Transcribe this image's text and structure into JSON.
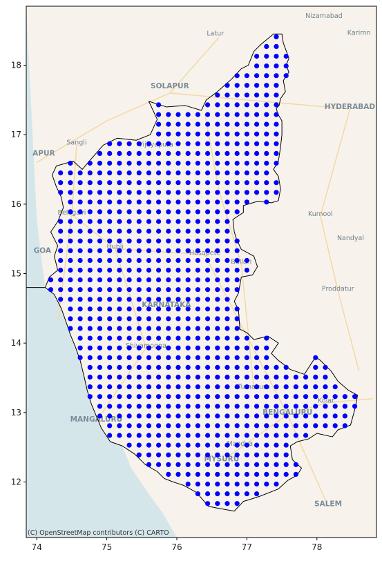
{
  "chart_data": {
    "type": "scatter",
    "title": "",
    "xlabel": "",
    "ylabel": "",
    "xlim": [
      73.85,
      78.85
    ],
    "ylim": [
      11.2,
      18.85
    ],
    "x_ticks": [
      74,
      75,
      76,
      77,
      78
    ],
    "y_ticks": [
      12,
      13,
      14,
      15,
      16,
      17,
      18
    ],
    "x_tick_labels": [
      "74",
      "75",
      "76",
      "77",
      "78"
    ],
    "y_tick_labels": [
      "12",
      "13",
      "14",
      "15",
      "16",
      "17",
      "18"
    ],
    "grid_spacing_deg": 0.14,
    "point_color": "#0000ff",
    "boundary_color": "#000000",
    "basemap": {
      "land_color": "#f7f3ec",
      "sea_color": "#d5e6ea",
      "attribution": "(C) OpenStreetMap contributors (C) CARTO",
      "place_labels": [
        {
          "name": "Nizamabad",
          "lon": 78.1,
          "lat": 18.68
        },
        {
          "name": "Karimn",
          "lon": 78.6,
          "lat": 18.44
        },
        {
          "name": "Latur",
          "lon": 76.55,
          "lat": 18.43
        },
        {
          "name": "SOLAPUR",
          "lon": 75.9,
          "lat": 17.67
        },
        {
          "name": "HYDERABAD",
          "lon": 78.47,
          "lat": 17.37
        },
        {
          "name": "Sangli",
          "lon": 74.57,
          "lat": 16.86
        },
        {
          "name": "Vijayapura",
          "lon": 75.7,
          "lat": 16.83
        },
        {
          "name": "APUR",
          "lon": 74.1,
          "lat": 16.7
        },
        {
          "name": "Kurnool",
          "lon": 78.05,
          "lat": 15.83
        },
        {
          "name": "Belagavi",
          "lon": 74.5,
          "lat": 15.85
        },
        {
          "name": "Nandyal",
          "lon": 78.48,
          "lat": 15.48
        },
        {
          "name": "GOA",
          "lon": 74.08,
          "lat": 15.3
        },
        {
          "name": "Hubli",
          "lon": 75.12,
          "lat": 15.36
        },
        {
          "name": "Hosapete",
          "lon": 76.4,
          "lat": 15.27
        },
        {
          "name": "Ballari",
          "lon": 76.92,
          "lat": 15.14
        },
        {
          "name": "Proddatur",
          "lon": 78.3,
          "lat": 14.75
        },
        {
          "name": "KARNATAKA",
          "lon": 75.85,
          "lat": 14.52
        },
        {
          "name": "Shivamogga",
          "lon": 75.56,
          "lat": 13.93
        },
        {
          "name": "Tumakuru",
          "lon": 77.1,
          "lat": 13.34
        },
        {
          "name": "Kolar",
          "lon": 78.13,
          "lat": 13.14
        },
        {
          "name": "MANGALURU",
          "lon": 74.85,
          "lat": 12.87
        },
        {
          "name": "BENGALURU",
          "lon": 77.58,
          "lat": 12.97
        },
        {
          "name": "Mandya",
          "lon": 76.9,
          "lat": 12.52
        },
        {
          "name": "MYSURU",
          "lon": 76.64,
          "lat": 12.3
        },
        {
          "name": "SALEM",
          "lon": 78.16,
          "lat": 11.65
        }
      ]
    },
    "boundary": [
      [
        77.38,
        18.45
      ],
      [
        77.5,
        18.45
      ],
      [
        77.52,
        18.32
      ],
      [
        77.55,
        18.24
      ],
      [
        77.6,
        18.1
      ],
      [
        77.56,
        18.0
      ],
      [
        77.6,
        17.9
      ],
      [
        77.52,
        17.78
      ],
      [
        77.55,
        17.62
      ],
      [
        77.48,
        17.52
      ],
      [
        77.46,
        17.42
      ],
      [
        77.42,
        17.38
      ],
      [
        77.44,
        17.3
      ],
      [
        77.5,
        17.2
      ],
      [
        77.5,
        17.0
      ],
      [
        77.48,
        16.82
      ],
      [
        77.45,
        16.62
      ],
      [
        77.38,
        16.5
      ],
      [
        77.45,
        16.4
      ],
      [
        77.48,
        16.22
      ],
      [
        77.45,
        16.05
      ],
      [
        77.35,
        16.02
      ],
      [
        77.15,
        16.04
      ],
      [
        76.95,
        15.98
      ],
      [
        76.95,
        15.88
      ],
      [
        76.8,
        15.78
      ],
      [
        76.82,
        15.6
      ],
      [
        76.85,
        15.5
      ],
      [
        76.92,
        15.35
      ],
      [
        77.1,
        15.25
      ],
      [
        77.15,
        15.1
      ],
      [
        77.08,
        14.98
      ],
      [
        76.92,
        14.95
      ],
      [
        76.88,
        14.72
      ],
      [
        76.82,
        14.6
      ],
      [
        76.88,
        14.48
      ],
      [
        76.9,
        14.2
      ],
      [
        77.0,
        14.15
      ],
      [
        77.1,
        14.05
      ],
      [
        77.3,
        14.1
      ],
      [
        77.45,
        14.0
      ],
      [
        77.35,
        13.85
      ],
      [
        77.45,
        13.75
      ],
      [
        77.62,
        13.62
      ],
      [
        77.82,
        13.55
      ],
      [
        77.98,
        13.8
      ],
      [
        78.05,
        13.75
      ],
      [
        78.2,
        13.6
      ],
      [
        78.3,
        13.45
      ],
      [
        78.45,
        13.32
      ],
      [
        78.58,
        13.25
      ],
      [
        78.55,
        13.08
      ],
      [
        78.48,
        12.82
      ],
      [
        78.3,
        12.75
      ],
      [
        78.22,
        12.65
      ],
      [
        78.0,
        12.7
      ],
      [
        77.88,
        12.62
      ],
      [
        77.72,
        12.58
      ],
      [
        77.62,
        12.52
      ],
      [
        77.65,
        12.32
      ],
      [
        77.78,
        12.2
      ],
      [
        77.72,
        12.1
      ],
      [
        77.58,
        12.02
      ],
      [
        77.45,
        11.9
      ],
      [
        77.2,
        11.8
      ],
      [
        77.05,
        11.75
      ],
      [
        76.95,
        11.72
      ],
      [
        76.82,
        11.58
      ],
      [
        76.6,
        11.62
      ],
      [
        76.45,
        11.65
      ],
      [
        76.28,
        11.85
      ],
      [
        76.1,
        11.95
      ],
      [
        75.95,
        12.0
      ],
      [
        75.82,
        12.05
      ],
      [
        75.72,
        12.15
      ],
      [
        75.55,
        12.25
      ],
      [
        75.4,
        12.4
      ],
      [
        75.22,
        12.52
      ],
      [
        75.05,
        12.58
      ],
      [
        74.92,
        12.78
      ],
      [
        74.85,
        12.95
      ],
      [
        74.78,
        13.12
      ],
      [
        74.72,
        13.32
      ],
      [
        74.68,
        13.5
      ],
      [
        74.62,
        13.75
      ],
      [
        74.55,
        13.95
      ],
      [
        74.48,
        14.12
      ],
      [
        74.42,
        14.3
      ],
      [
        74.35,
        14.5
      ],
      [
        74.25,
        14.7
      ],
      [
        74.12,
        14.8
      ],
      [
        74.18,
        14.95
      ],
      [
        74.3,
        15.05
      ],
      [
        74.25,
        15.25
      ],
      [
        74.3,
        15.4
      ],
      [
        74.2,
        15.6
      ],
      [
        74.3,
        15.75
      ],
      [
        74.38,
        15.95
      ],
      [
        74.35,
        16.1
      ],
      [
        74.28,
        16.25
      ],
      [
        74.22,
        16.42
      ],
      [
        74.28,
        16.55
      ],
      [
        74.52,
        16.62
      ],
      [
        74.65,
        16.5
      ],
      [
        74.75,
        16.62
      ],
      [
        74.95,
        16.85
      ],
      [
        75.15,
        16.95
      ],
      [
        75.42,
        16.92
      ],
      [
        75.62,
        17.0
      ],
      [
        75.72,
        17.22
      ],
      [
        75.6,
        17.48
      ],
      [
        75.85,
        17.4
      ],
      [
        76.12,
        17.42
      ],
      [
        76.35,
        17.35
      ],
      [
        76.42,
        17.5
      ],
      [
        76.58,
        17.62
      ],
      [
        76.78,
        17.8
      ],
      [
        76.92,
        17.95
      ],
      [
        77.02,
        18.0
      ],
      [
        77.1,
        18.2
      ],
      [
        77.2,
        18.3
      ]
    ],
    "coast_extension": [
      [
        74.12,
        14.8
      ],
      [
        73.85,
        14.8
      ]
    ],
    "sea_polygon": [
      [
        73.85,
        18.85
      ],
      [
        74.0,
        15.8
      ],
      [
        74.05,
        15.35
      ],
      [
        74.12,
        14.8
      ],
      [
        74.25,
        14.7
      ],
      [
        74.35,
        14.5
      ],
      [
        74.42,
        14.3
      ],
      [
        74.48,
        14.12
      ],
      [
        74.55,
        13.95
      ],
      [
        74.62,
        13.75
      ],
      [
        74.68,
        13.5
      ],
      [
        74.72,
        13.32
      ],
      [
        74.78,
        13.12
      ],
      [
        74.85,
        12.95
      ],
      [
        74.92,
        12.78
      ],
      [
        75.05,
        12.58
      ],
      [
        75.22,
        12.52
      ],
      [
        75.35,
        12.2
      ],
      [
        75.55,
        11.9
      ],
      [
        75.8,
        11.55
      ],
      [
        76.0,
        11.2
      ],
      [
        73.85,
        11.2
      ]
    ]
  }
}
